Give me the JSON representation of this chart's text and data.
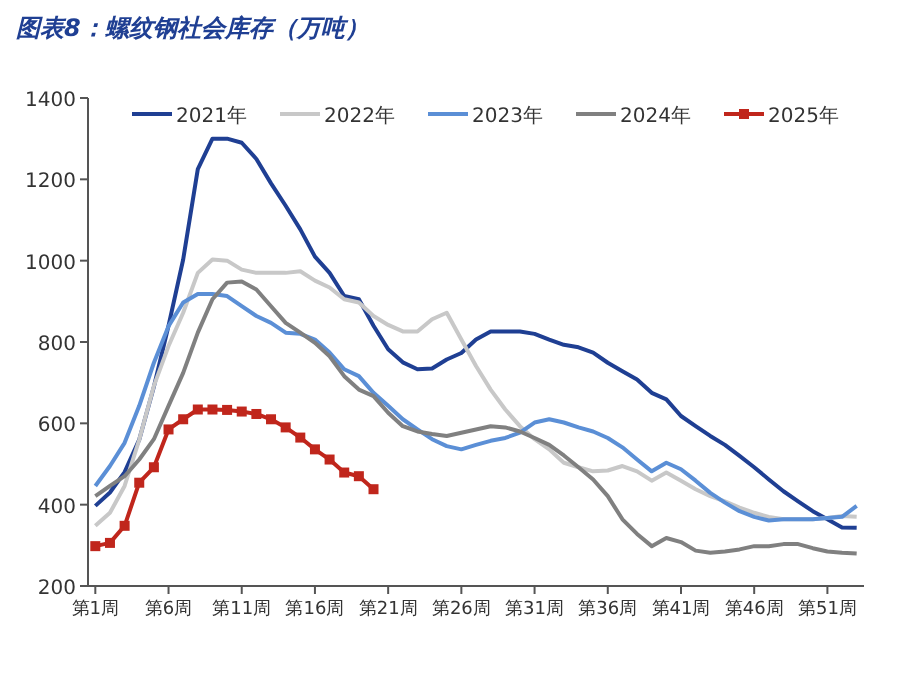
{
  "chart_data": {
    "type": "line",
    "title": "图表8：螺纹钢社会库存（万吨）",
    "categories": [
      "第1周",
      null,
      null,
      null,
      null,
      "第6周",
      null,
      null,
      null,
      null,
      "第11周",
      null,
      null,
      null,
      null,
      "第16周",
      null,
      null,
      null,
      null,
      "第21周",
      null,
      null,
      null,
      null,
      "第26周",
      null,
      null,
      null,
      null,
      "第31周",
      null,
      null,
      null,
      null,
      "第36周",
      null,
      null,
      null,
      null,
      "第41周",
      null,
      null,
      null,
      null,
      "第46周",
      null,
      null,
      null,
      null,
      "第51周",
      null,
      null
    ],
    "ylim": [
      200,
      1400
    ],
    "yticks": [
      200,
      400,
      600,
      800,
      1000,
      1200,
      1400
    ],
    "legend": "top",
    "series": [
      {
        "name": "2021年",
        "color": "#1f3f93",
        "marker": "none",
        "values": [
          397,
          430,
          480,
          560,
          690,
          840,
          1003,
          1225,
          1300,
          1300,
          1290,
          1250,
          1190,
          1135,
          1077,
          1010,
          970,
          913,
          905,
          840,
          782,
          750,
          733,
          735,
          757,
          773,
          806,
          826,
          826,
          826,
          820,
          806,
          793,
          787,
          774,
          749,
          728,
          708,
          675,
          659,
          618,
          593,
          569,
          547,
          520,
          492,
          462,
          433,
          408,
          384,
          364,
          344,
          343
        ]
      },
      {
        "name": "2022年",
        "color": "#c8c8c8",
        "marker": "none",
        "values": [
          348,
          380,
          446,
          560,
          692,
          790,
          872,
          970,
          1003,
          1000,
          978,
          970,
          970,
          970,
          974,
          951,
          934,
          905,
          897,
          864,
          842,
          826,
          826,
          856,
          872,
          806,
          741,
          683,
          634,
          593,
          561,
          536,
          503,
          492,
          482,
          484,
          495,
          482,
          459,
          479,
          459,
          438,
          421,
          408,
          393,
          380,
          370,
          364,
          364,
          364,
          367,
          372,
          370
        ]
      },
      {
        "name": "2023年",
        "color": "#5b8fd6",
        "marker": "none",
        "values": [
          446,
          495,
          552,
          643,
          749,
          839,
          897,
          918,
          918,
          913,
          888,
          864,
          847,
          823,
          820,
          806,
          774,
          733,
          716,
          675,
          643,
          610,
          585,
          561,
          544,
          536,
          547,
          557,
          564,
          577,
          602,
          610,
          602,
          590,
          580,
          564,
          541,
          511,
          482,
          503,
          487,
          459,
          429,
          405,
          384,
          370,
          361,
          364,
          364,
          364,
          367,
          370,
          397
        ]
      },
      {
        "name": "2024年",
        "color": "#808080",
        "marker": "none",
        "values": [
          421,
          446,
          470,
          511,
          561,
          643,
          724,
          823,
          905,
          946,
          949,
          929,
          888,
          847,
          823,
          798,
          765,
          716,
          683,
          667,
          626,
          593,
          580,
          574,
          569,
          577,
          585,
          593,
          590,
          580,
          564,
          547,
          521,
          492,
          462,
          421,
          364,
          328,
          298,
          318,
          308,
          287,
          282,
          285,
          290,
          298,
          298,
          303,
          303,
          293,
          285,
          282,
          280
        ]
      },
      {
        "name": "2025年",
        "color": "#c0261c",
        "marker": "square",
        "values": [
          298,
          306,
          348,
          454,
          492,
          585,
          610,
          634,
          634,
          633,
          629,
          623,
          610,
          590,
          565,
          536,
          511,
          479,
          470,
          438,
          null,
          null,
          null,
          null,
          null,
          null,
          null,
          null,
          null,
          null,
          null,
          null,
          null,
          null,
          null,
          null,
          null,
          null,
          null,
          null,
          null,
          null,
          null,
          null,
          null,
          null,
          null,
          null,
          null,
          null,
          null,
          null,
          null
        ]
      }
    ]
  }
}
